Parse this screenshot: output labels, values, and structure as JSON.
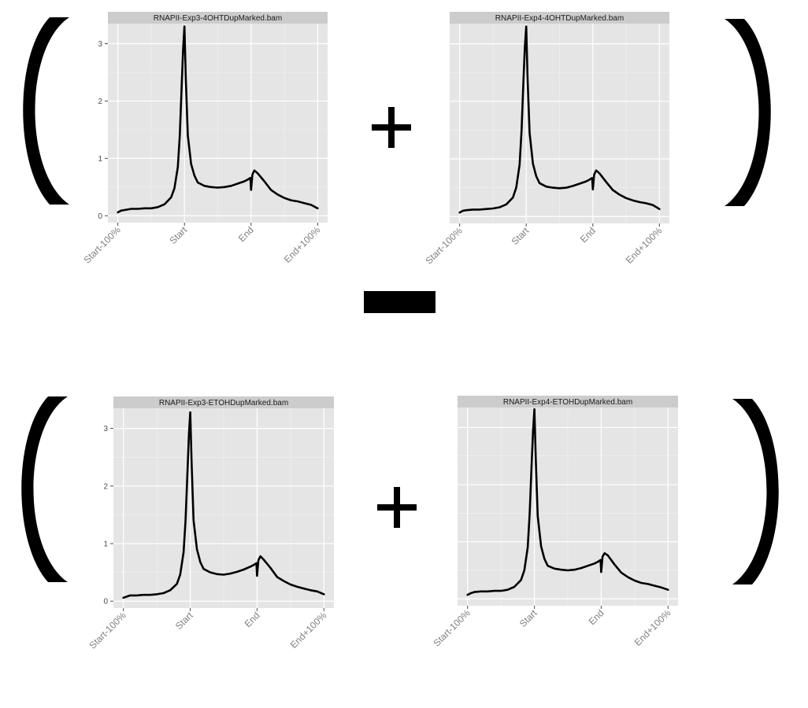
{
  "operators": {
    "plus_top": "+",
    "plus_bottom": "+",
    "minus": "-"
  },
  "colors": {
    "panel_bg": "#e5e5e5",
    "strip_bg": "#cccccc",
    "grid_major": "#ffffff",
    "grid_minor": "#f2f2f2",
    "line": "#000000"
  },
  "chart_data": [
    {
      "type": "line",
      "facet_label": "RNAPII-Exp3-4OHTDupMarked.bam",
      "x_ticks": [
        "Start-100%",
        "Start",
        "End",
        "End+100%"
      ],
      "x_tick_values": [
        0,
        1,
        2,
        3
      ],
      "y_ticks": [
        "0",
        "1",
        "2",
        "3"
      ],
      "y_tick_values": [
        0,
        1,
        2,
        3
      ],
      "ylim": [
        -0.12,
        3.35
      ],
      "xlim": [
        -0.15,
        3.15
      ],
      "x": [
        0,
        0.05,
        0.1,
        0.2,
        0.3,
        0.4,
        0.5,
        0.6,
        0.7,
        0.8,
        0.85,
        0.9,
        0.93,
        0.96,
        0.98,
        1.0,
        1.02,
        1.05,
        1.1,
        1.15,
        1.2,
        1.3,
        1.4,
        1.5,
        1.6,
        1.7,
        1.8,
        1.9,
        1.95,
        1.99,
        2.0,
        2.02,
        2.05,
        2.1,
        2.2,
        2.3,
        2.4,
        2.5,
        2.6,
        2.7,
        2.8,
        2.9,
        3.0
      ],
      "y": [
        0.06,
        0.09,
        0.1,
        0.12,
        0.12,
        0.13,
        0.13,
        0.15,
        0.2,
        0.32,
        0.48,
        0.85,
        1.4,
        2.3,
        2.9,
        3.3,
        2.4,
        1.4,
        0.9,
        0.7,
        0.58,
        0.52,
        0.5,
        0.49,
        0.5,
        0.52,
        0.56,
        0.6,
        0.63,
        0.66,
        0.45,
        0.72,
        0.79,
        0.74,
        0.6,
        0.45,
        0.37,
        0.31,
        0.27,
        0.25,
        0.22,
        0.19,
        0.13
      ]
    },
    {
      "type": "line",
      "facet_label": "RNAPII-Exp4-4OHTDupMarked.bam",
      "x_ticks": [
        "Start-100%",
        "Start",
        "End",
        "End+100%"
      ],
      "x_tick_values": [
        0,
        1,
        2,
        3
      ],
      "y_ticks": [],
      "ylim": [
        -0.12,
        3.35
      ],
      "xlim": [
        -0.15,
        3.15
      ],
      "x": [
        0,
        0.05,
        0.1,
        0.2,
        0.3,
        0.4,
        0.5,
        0.6,
        0.7,
        0.8,
        0.85,
        0.9,
        0.93,
        0.96,
        0.98,
        1.0,
        1.02,
        1.05,
        1.1,
        1.15,
        1.2,
        1.3,
        1.4,
        1.5,
        1.6,
        1.7,
        1.8,
        1.9,
        1.95,
        1.99,
        2.0,
        2.02,
        2.05,
        2.1,
        2.2,
        2.3,
        2.4,
        2.5,
        2.6,
        2.7,
        2.8,
        2.9,
        3.0
      ],
      "y": [
        0.07,
        0.1,
        0.11,
        0.12,
        0.12,
        0.13,
        0.14,
        0.16,
        0.21,
        0.33,
        0.5,
        0.9,
        1.5,
        2.4,
        2.95,
        3.3,
        2.4,
        1.45,
        0.92,
        0.7,
        0.58,
        0.52,
        0.5,
        0.49,
        0.5,
        0.53,
        0.57,
        0.61,
        0.64,
        0.67,
        0.47,
        0.73,
        0.8,
        0.75,
        0.6,
        0.46,
        0.38,
        0.32,
        0.28,
        0.25,
        0.23,
        0.2,
        0.13
      ]
    },
    {
      "type": "line",
      "facet_label": "RNAPII-Exp3-ETOHDupMarked.bam",
      "x_ticks": [
        "Start-100%",
        "Start",
        "End",
        "End+100%"
      ],
      "x_tick_values": [
        0,
        1,
        2,
        3
      ],
      "y_ticks": [
        "0",
        "1",
        "2",
        "3"
      ],
      "y_tick_values": [
        0,
        1,
        2,
        3
      ],
      "ylim": [
        -0.12,
        3.35
      ],
      "xlim": [
        -0.15,
        3.15
      ],
      "x": [
        0,
        0.05,
        0.1,
        0.2,
        0.3,
        0.4,
        0.5,
        0.6,
        0.7,
        0.8,
        0.85,
        0.9,
        0.93,
        0.96,
        0.98,
        1.0,
        1.02,
        1.05,
        1.1,
        1.15,
        1.2,
        1.3,
        1.4,
        1.5,
        1.6,
        1.7,
        1.8,
        1.9,
        1.95,
        1.99,
        2.0,
        2.02,
        2.05,
        2.1,
        2.2,
        2.3,
        2.4,
        2.5,
        2.6,
        2.7,
        2.8,
        2.9,
        3.0
      ],
      "y": [
        0.06,
        0.08,
        0.1,
        0.1,
        0.11,
        0.11,
        0.12,
        0.14,
        0.19,
        0.3,
        0.46,
        0.85,
        1.4,
        2.3,
        2.9,
        3.28,
        2.4,
        1.4,
        0.9,
        0.68,
        0.56,
        0.5,
        0.47,
        0.46,
        0.48,
        0.51,
        0.55,
        0.6,
        0.63,
        0.66,
        0.44,
        0.71,
        0.78,
        0.72,
        0.58,
        0.42,
        0.35,
        0.29,
        0.25,
        0.22,
        0.19,
        0.17,
        0.12
      ]
    },
    {
      "type": "line",
      "facet_label": "RNAPII-Exp4-ETOHDupMarked.bam",
      "x_ticks": [
        "Start-100%",
        "Start",
        "End",
        "End+100%"
      ],
      "x_tick_values": [
        0,
        1,
        2,
        3
      ],
      "y_ticks": [],
      "ylim": [
        -0.12,
        3.35
      ],
      "xlim": [
        -0.15,
        3.15
      ],
      "x": [
        0,
        0.05,
        0.1,
        0.2,
        0.3,
        0.4,
        0.5,
        0.6,
        0.7,
        0.8,
        0.85,
        0.9,
        0.93,
        0.96,
        0.98,
        1.0,
        1.02,
        1.05,
        1.1,
        1.15,
        1.2,
        1.3,
        1.4,
        1.5,
        1.6,
        1.7,
        1.8,
        1.9,
        1.95,
        1.99,
        2.0,
        2.02,
        2.05,
        2.1,
        2.2,
        2.3,
        2.4,
        2.5,
        2.6,
        2.7,
        2.8,
        2.9,
        3.0
      ],
      "y": [
        0.07,
        0.1,
        0.12,
        0.13,
        0.13,
        0.14,
        0.14,
        0.16,
        0.21,
        0.33,
        0.5,
        0.9,
        1.5,
        2.4,
        2.95,
        3.32,
        2.45,
        1.45,
        0.92,
        0.7,
        0.58,
        0.53,
        0.51,
        0.5,
        0.51,
        0.54,
        0.58,
        0.62,
        0.65,
        0.68,
        0.47,
        0.74,
        0.8,
        0.76,
        0.6,
        0.46,
        0.38,
        0.32,
        0.28,
        0.26,
        0.23,
        0.2,
        0.16
      ]
    }
  ]
}
